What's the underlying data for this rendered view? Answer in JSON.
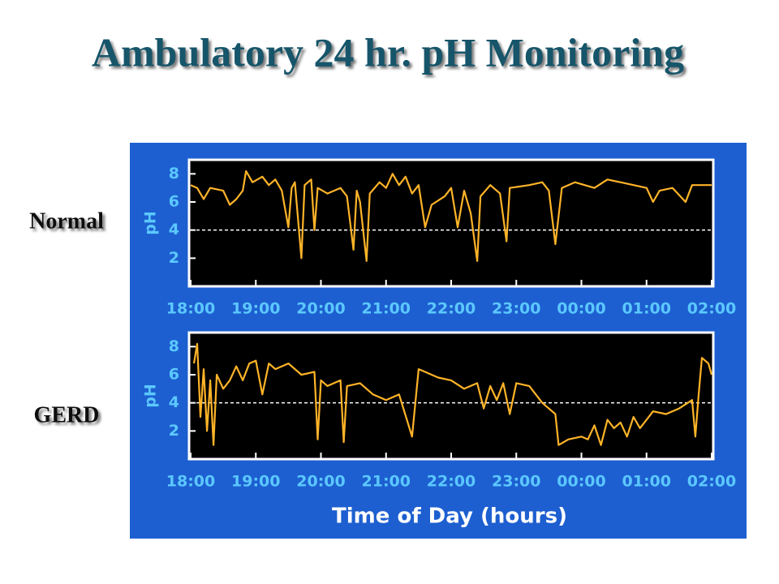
{
  "title": "Ambulatory 24 hr. pH Monitoring",
  "xlabel": "Time of Day (hours)",
  "chart_data": [
    {
      "type": "line",
      "label": "Normal",
      "ylabel": "pH",
      "color": "#ffb428",
      "reference_line": 4,
      "xlim": [
        18,
        26
      ],
      "ylim": [
        0,
        9
      ],
      "xticks": [
        {
          "value": 18,
          "label": "18:00"
        },
        {
          "value": 19,
          "label": "19:00"
        },
        {
          "value": 20,
          "label": "20:00"
        },
        {
          "value": 21,
          "label": "21:00"
        },
        {
          "value": 22,
          "label": "22:00"
        },
        {
          "value": 23,
          "label": "23:00"
        },
        {
          "value": 24,
          "label": "00:00"
        },
        {
          "value": 25,
          "label": "01:00"
        },
        {
          "value": 26,
          "label": "02:00"
        }
      ],
      "yticks": [
        2,
        4,
        6,
        8
      ],
      "x": [
        18.0,
        18.1,
        18.2,
        18.3,
        18.5,
        18.6,
        18.7,
        18.8,
        18.85,
        18.95,
        19.1,
        19.2,
        19.3,
        19.4,
        19.5,
        19.55,
        19.6,
        19.7,
        19.75,
        19.85,
        19.9,
        19.95,
        20.1,
        20.3,
        20.4,
        20.5,
        20.55,
        20.6,
        20.7,
        20.75,
        20.9,
        21.0,
        21.1,
        21.2,
        21.3,
        21.4,
        21.5,
        21.6,
        21.7,
        21.9,
        22.0,
        22.1,
        22.2,
        22.3,
        22.4,
        22.45,
        22.6,
        22.75,
        22.85,
        22.9,
        23.2,
        23.4,
        23.5,
        23.6,
        23.7,
        23.9,
        24.2,
        24.4,
        24.6,
        25.0,
        25.1,
        25.2,
        25.4,
        25.6,
        25.7,
        25.9,
        26.0
      ],
      "values": [
        7.2,
        7.0,
        6.2,
        7.0,
        6.8,
        5.8,
        6.2,
        6.8,
        8.2,
        7.4,
        7.8,
        7.2,
        7.6,
        6.8,
        4.2,
        7.0,
        7.4,
        2.0,
        7.2,
        7.6,
        4.0,
        7.0,
        6.6,
        7.0,
        6.4,
        2.6,
        6.8,
        6.0,
        1.8,
        6.6,
        7.4,
        7.0,
        8.0,
        7.2,
        7.8,
        6.6,
        7.2,
        4.2,
        5.8,
        6.4,
        7.0,
        4.2,
        6.8,
        5.2,
        1.8,
        6.4,
        7.2,
        6.6,
        3.2,
        7.0,
        7.2,
        7.4,
        6.8,
        3.0,
        7.0,
        7.4,
        7.0,
        7.6,
        7.4,
        7.0,
        6.0,
        6.8,
        7.0,
        6.0,
        7.2,
        7.2,
        7.2
      ]
    },
    {
      "type": "line",
      "label": "GERD",
      "ylabel": "pH",
      "color": "#ffb428",
      "reference_line": 4,
      "xlim": [
        18,
        26
      ],
      "ylim": [
        0,
        9
      ],
      "xticks": [
        {
          "value": 18,
          "label": "18:00"
        },
        {
          "value": 19,
          "label": "19:00"
        },
        {
          "value": 20,
          "label": "20:00"
        },
        {
          "value": 21,
          "label": "21:00"
        },
        {
          "value": 22,
          "label": "22:00"
        },
        {
          "value": 23,
          "label": "23:00"
        },
        {
          "value": 24,
          "label": "00:00"
        },
        {
          "value": 25,
          "label": "01:00"
        },
        {
          "value": 26,
          "label": "02:00"
        }
      ],
      "yticks": [
        2,
        4,
        6,
        8
      ],
      "x": [
        18.05,
        18.1,
        18.15,
        18.2,
        18.25,
        18.3,
        18.35,
        18.4,
        18.5,
        18.6,
        18.7,
        18.8,
        18.9,
        19.0,
        19.1,
        19.2,
        19.3,
        19.5,
        19.7,
        19.9,
        19.95,
        20.0,
        20.1,
        20.2,
        20.3,
        20.35,
        20.4,
        20.6,
        20.8,
        21.0,
        21.2,
        21.4,
        21.5,
        21.6,
        21.8,
        22.0,
        22.2,
        22.4,
        22.5,
        22.6,
        22.7,
        22.8,
        22.9,
        23.0,
        23.2,
        23.4,
        23.6,
        23.65,
        23.8,
        24.0,
        24.1,
        24.2,
        24.3,
        24.4,
        24.5,
        24.6,
        24.7,
        24.8,
        24.9,
        25.0,
        25.1,
        25.3,
        25.5,
        25.7,
        25.75,
        25.8,
        25.85,
        25.95,
        26.0
      ],
      "values": [
        6.8,
        8.2,
        3.0,
        6.4,
        2.0,
        5.6,
        1.0,
        6.0,
        5.0,
        5.6,
        6.6,
        5.6,
        6.8,
        7.0,
        4.6,
        6.8,
        6.4,
        6.8,
        6.0,
        6.2,
        1.4,
        5.6,
        5.2,
        5.4,
        5.6,
        1.2,
        5.2,
        5.4,
        4.6,
        4.2,
        4.6,
        1.6,
        6.4,
        6.2,
        5.8,
        5.6,
        5.0,
        5.4,
        3.6,
        5.2,
        4.2,
        5.4,
        3.2,
        5.4,
        5.2,
        4.0,
        3.2,
        1.0,
        1.4,
        1.6,
        1.4,
        2.4,
        1.0,
        2.8,
        2.2,
        2.6,
        1.6,
        3.0,
        2.2,
        2.8,
        3.4,
        3.2,
        3.6,
        4.2,
        1.6,
        4.6,
        7.2,
        6.8,
        6.0
      ]
    }
  ]
}
